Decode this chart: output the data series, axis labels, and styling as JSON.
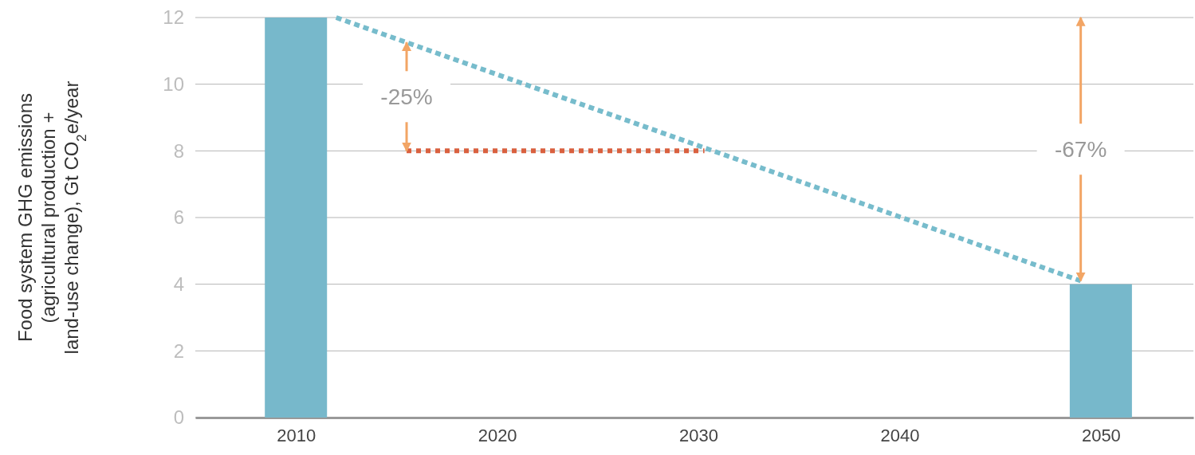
{
  "chart_data": {
    "type": "bar",
    "ylabel": "Food system GHG emissions\n(agricultural production +\nland-use change), Gt CO$_{2}$e/year",
    "xlim": [
      2005,
      2054.6
    ],
    "xticks": [
      2010,
      2020,
      2030,
      2040,
      2050
    ],
    "ylim": [
      0,
      12
    ],
    "yticks": [
      0,
      2,
      4,
      6,
      8,
      10,
      12
    ],
    "grid": "y",
    "series": [
      {
        "color": "#77b8cb",
        "x": [
          2010,
          2050
        ],
        "values": [
          12,
          4
        ]
      },
      {
        "type": "line",
        "color": "#77bccc",
        "x": [
          2012,
          2049
        ],
        "values": [
          12,
          4.1
        ],
        "line_style": "dashed"
      },
      {
        "type": "line",
        "color": "#d9603f",
        "x": [
          2015.5,
          2030.3
        ],
        "values": [
          8,
          8
        ],
        "line_style": "dotted"
      }
    ],
    "annotations": [
      {
        "text": "-25%",
        "x": 2015.5,
        "y": 8
      },
      {
        "text": "-67%",
        "x": 2049,
        "y": 4.1
      }
    ]
  }
}
